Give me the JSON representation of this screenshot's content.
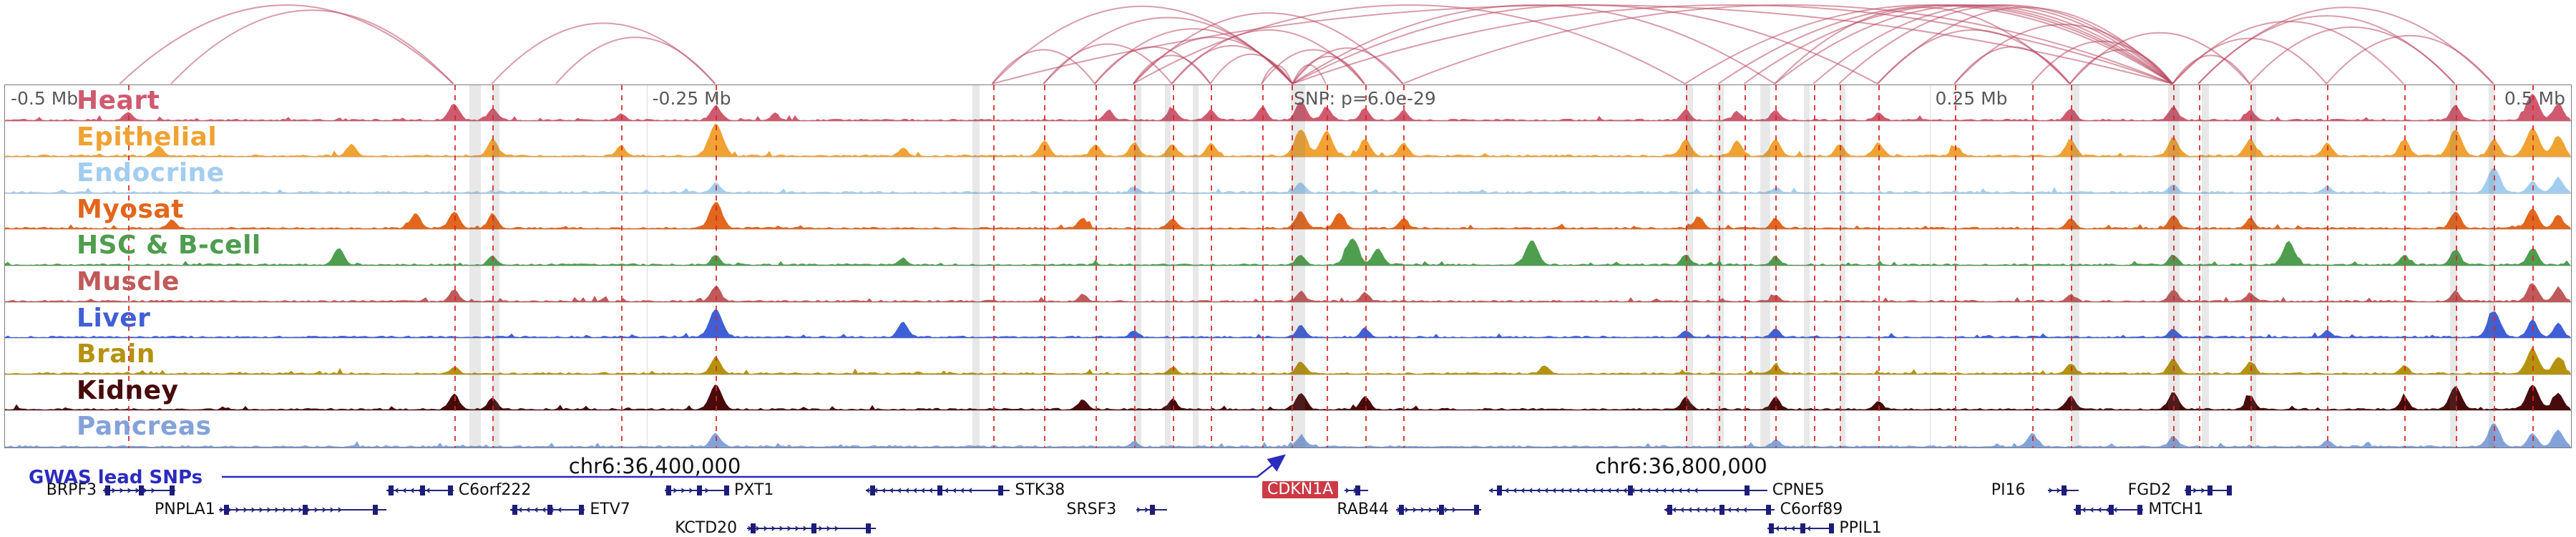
{
  "chart_data": {
    "type": "genome-tracks",
    "title": "",
    "axis": {
      "tick_labels": [
        {
          "text": "-0.5 Mb",
          "x_pct": 0.0,
          "align": "left"
        },
        {
          "text": "-0.25 Mb",
          "x_pct": 0.25,
          "align": "left"
        },
        {
          "text": "SNP: p=6.0e-29",
          "x_pct": 0.5,
          "align": "left"
        },
        {
          "text": "0.25 Mb",
          "x_pct": 0.75,
          "align": "left"
        },
        {
          "text": "0.5 Mb",
          "x_pct": 1.0,
          "align": "right"
        }
      ],
      "coordinate_labels": [
        {
          "text": "chr6:36,400,000",
          "x_pct": 0.2535
        },
        {
          "text": "chr6:36,800,000",
          "x_pct": 0.6535
        }
      ]
    },
    "gwas": {
      "label": "GWAS lead SNPs",
      "color": "#2b2bbf"
    },
    "arc_color": "#b94a62",
    "tracks": [
      {
        "name": "Heart",
        "color": "#cf5a70",
        "peaks": [
          [
            0.048,
            0.25
          ],
          [
            0.175,
            0.5
          ],
          [
            0.19,
            0.35
          ],
          [
            0.24,
            0.2
          ],
          [
            0.277,
            0.45
          ],
          [
            0.3,
            0.2
          ],
          [
            0.43,
            0.3
          ],
          [
            0.455,
            0.35
          ],
          [
            0.47,
            0.3
          ],
          [
            0.49,
            0.4
          ],
          [
            0.505,
            0.55
          ],
          [
            0.515,
            0.4
          ],
          [
            0.53,
            0.35
          ],
          [
            0.545,
            0.3
          ],
          [
            0.655,
            0.3
          ],
          [
            0.675,
            0.25
          ],
          [
            0.69,
            0.3
          ],
          [
            0.73,
            0.2
          ],
          [
            0.805,
            0.35
          ],
          [
            0.845,
            0.4
          ],
          [
            0.875,
            0.3
          ],
          [
            0.955,
            0.45
          ],
          [
            0.985,
            0.8
          ],
          [
            0.995,
            0.5
          ]
        ]
      },
      {
        "name": "Epithelial",
        "color": "#f0a232",
        "peaks": [
          [
            0.06,
            0.3
          ],
          [
            0.135,
            0.35
          ],
          [
            0.19,
            0.5
          ],
          [
            0.24,
            0.3
          ],
          [
            0.277,
            0.97
          ],
          [
            0.35,
            0.25
          ],
          [
            0.405,
            0.45
          ],
          [
            0.425,
            0.35
          ],
          [
            0.44,
            0.4
          ],
          [
            0.455,
            0.35
          ],
          [
            0.47,
            0.4
          ],
          [
            0.505,
            0.8
          ],
          [
            0.515,
            0.75
          ],
          [
            0.53,
            0.5
          ],
          [
            0.545,
            0.4
          ],
          [
            0.655,
            0.5
          ],
          [
            0.675,
            0.45
          ],
          [
            0.69,
            0.5
          ],
          [
            0.715,
            0.35
          ],
          [
            0.73,
            0.4
          ],
          [
            0.76,
            0.3
          ],
          [
            0.805,
            0.5
          ],
          [
            0.845,
            0.55
          ],
          [
            0.875,
            0.5
          ],
          [
            0.905,
            0.4
          ],
          [
            0.935,
            0.5
          ],
          [
            0.955,
            0.8
          ],
          [
            0.97,
            0.5
          ],
          [
            0.985,
            0.85
          ],
          [
            0.995,
            0.6
          ]
        ]
      },
      {
        "name": "Endocrine",
        "color": "#a3cdf0",
        "peaks": [
          [
            0.277,
            0.3
          ],
          [
            0.44,
            0.15
          ],
          [
            0.505,
            0.3
          ],
          [
            0.69,
            0.15
          ],
          [
            0.845,
            0.25
          ],
          [
            0.905,
            0.2
          ],
          [
            0.97,
            0.75
          ],
          [
            0.985,
            0.35
          ],
          [
            0.995,
            0.45
          ]
        ]
      },
      {
        "name": "Myosat",
        "color": "#e2661c",
        "peaks": [
          [
            0.065,
            0.25
          ],
          [
            0.16,
            0.45
          ],
          [
            0.175,
            0.5
          ],
          [
            0.19,
            0.4
          ],
          [
            0.277,
            0.8
          ],
          [
            0.42,
            0.3
          ],
          [
            0.455,
            0.3
          ],
          [
            0.505,
            0.5
          ],
          [
            0.52,
            0.45
          ],
          [
            0.545,
            0.3
          ],
          [
            0.66,
            0.35
          ],
          [
            0.69,
            0.3
          ],
          [
            0.805,
            0.3
          ],
          [
            0.845,
            0.4
          ],
          [
            0.875,
            0.3
          ],
          [
            0.955,
            0.5
          ],
          [
            0.985,
            0.6
          ],
          [
            0.995,
            0.4
          ]
        ]
      },
      {
        "name": "HSC & B-cell",
        "color": "#4f9d4f",
        "peaks": [
          [
            0.13,
            0.5
          ],
          [
            0.19,
            0.25
          ],
          [
            0.277,
            0.3
          ],
          [
            0.35,
            0.2
          ],
          [
            0.505,
            0.3
          ],
          [
            0.525,
            0.8
          ],
          [
            0.535,
            0.5
          ],
          [
            0.595,
            0.75
          ],
          [
            0.655,
            0.3
          ],
          [
            0.69,
            0.25
          ],
          [
            0.845,
            0.3
          ],
          [
            0.89,
            0.7
          ],
          [
            0.935,
            0.3
          ],
          [
            0.955,
            0.45
          ],
          [
            0.985,
            0.5
          ]
        ]
      },
      {
        "name": "Muscle",
        "color": "#c05a5a",
        "peaks": [
          [
            0.175,
            0.35
          ],
          [
            0.277,
            0.45
          ],
          [
            0.42,
            0.2
          ],
          [
            0.505,
            0.3
          ],
          [
            0.53,
            0.25
          ],
          [
            0.69,
            0.2
          ],
          [
            0.805,
            0.2
          ],
          [
            0.845,
            0.35
          ],
          [
            0.875,
            0.25
          ],
          [
            0.955,
            0.3
          ],
          [
            0.985,
            0.55
          ],
          [
            0.995,
            0.4
          ]
        ]
      },
      {
        "name": "Liver",
        "color": "#3f5fd6",
        "peaks": [
          [
            0.277,
            0.85
          ],
          [
            0.35,
            0.45
          ],
          [
            0.44,
            0.2
          ],
          [
            0.505,
            0.35
          ],
          [
            0.53,
            0.25
          ],
          [
            0.655,
            0.2
          ],
          [
            0.69,
            0.25
          ],
          [
            0.845,
            0.25
          ],
          [
            0.905,
            0.2
          ],
          [
            0.97,
            0.8
          ],
          [
            0.985,
            0.5
          ],
          [
            0.995,
            0.4
          ]
        ]
      },
      {
        "name": "Brain",
        "color": "#b5920e",
        "peaks": [
          [
            0.175,
            0.2
          ],
          [
            0.277,
            0.5
          ],
          [
            0.455,
            0.2
          ],
          [
            0.505,
            0.35
          ],
          [
            0.6,
            0.25
          ],
          [
            0.69,
            0.25
          ],
          [
            0.805,
            0.3
          ],
          [
            0.845,
            0.45
          ],
          [
            0.875,
            0.35
          ],
          [
            0.935,
            0.25
          ],
          [
            0.985,
            0.75
          ],
          [
            0.995,
            0.5
          ]
        ]
      },
      {
        "name": "Kidney",
        "color": "#470b0b",
        "peaks": [
          [
            0.175,
            0.45
          ],
          [
            0.19,
            0.35
          ],
          [
            0.277,
            0.75
          ],
          [
            0.42,
            0.3
          ],
          [
            0.455,
            0.3
          ],
          [
            0.505,
            0.5
          ],
          [
            0.53,
            0.4
          ],
          [
            0.655,
            0.35
          ],
          [
            0.69,
            0.35
          ],
          [
            0.73,
            0.25
          ],
          [
            0.805,
            0.4
          ],
          [
            0.845,
            0.5
          ],
          [
            0.875,
            0.4
          ],
          [
            0.935,
            0.35
          ],
          [
            0.955,
            0.7
          ],
          [
            0.985,
            0.75
          ],
          [
            0.995,
            0.5
          ]
        ]
      },
      {
        "name": "Pancreas",
        "color": "#84a2da",
        "peaks": [
          [
            0.277,
            0.4
          ],
          [
            0.44,
            0.15
          ],
          [
            0.505,
            0.3
          ],
          [
            0.69,
            0.2
          ],
          [
            0.79,
            0.4
          ],
          [
            0.845,
            0.3
          ],
          [
            0.905,
            0.2
          ],
          [
            0.97,
            0.7
          ],
          [
            0.985,
            0.4
          ],
          [
            0.995,
            0.5
          ]
        ]
      }
    ],
    "arcs": [
      [
        0.045,
        0.175
      ],
      [
        0.065,
        0.175
      ],
      [
        0.19,
        0.277
      ],
      [
        0.215,
        0.277
      ],
      [
        0.385,
        0.502
      ],
      [
        0.405,
        0.502
      ],
      [
        0.425,
        0.502
      ],
      [
        0.44,
        0.502
      ],
      [
        0.455,
        0.502
      ],
      [
        0.47,
        0.502
      ],
      [
        0.49,
        0.502
      ],
      [
        0.385,
        0.425
      ],
      [
        0.405,
        0.455
      ],
      [
        0.425,
        0.47
      ],
      [
        0.44,
        0.47
      ],
      [
        0.502,
        0.515
      ],
      [
        0.502,
        0.53
      ],
      [
        0.502,
        0.545
      ],
      [
        0.49,
        0.53
      ],
      [
        0.455,
        0.53
      ],
      [
        0.44,
        0.545
      ],
      [
        0.502,
        0.69
      ],
      [
        0.502,
        0.73
      ],
      [
        0.44,
        0.655
      ],
      [
        0.385,
        0.845
      ],
      [
        0.502,
        0.845
      ],
      [
        0.545,
        0.845
      ],
      [
        0.655,
        0.845
      ],
      [
        0.668,
        0.845
      ],
      [
        0.678,
        0.845
      ],
      [
        0.69,
        0.845
      ],
      [
        0.705,
        0.845
      ],
      [
        0.715,
        0.845
      ],
      [
        0.73,
        0.845
      ],
      [
        0.76,
        0.845
      ],
      [
        0.79,
        0.845
      ],
      [
        0.805,
        0.845
      ],
      [
        0.69,
        0.805
      ],
      [
        0.73,
        0.805
      ],
      [
        0.76,
        0.805
      ],
      [
        0.845,
        0.875
      ],
      [
        0.845,
        0.905
      ],
      [
        0.845,
        0.935
      ],
      [
        0.855,
        0.955
      ],
      [
        0.855,
        0.97
      ],
      [
        0.805,
        0.875
      ],
      [
        0.875,
        0.955
      ],
      [
        0.905,
        0.97
      ]
    ],
    "snp_lines": [
      0.048,
      0.175,
      0.19,
      0.24,
      0.277,
      0.385,
      0.405,
      0.425,
      0.44,
      0.455,
      0.47,
      0.49,
      0.5015,
      0.515,
      0.53,
      0.545,
      0.655,
      0.668,
      0.678,
      0.69,
      0.705,
      0.715,
      0.73,
      0.76,
      0.79,
      0.805,
      0.845,
      0.855,
      0.875,
      0.905,
      0.935,
      0.955,
      0.97,
      0.985
    ],
    "highlight_bands": [
      [
        0.181,
        16
      ],
      [
        0.19,
        10
      ],
      [
        0.377,
        10
      ],
      [
        0.44,
        10
      ],
      [
        0.452,
        8
      ],
      [
        0.463,
        8
      ],
      [
        0.501,
        20
      ],
      [
        0.655,
        10
      ],
      [
        0.667,
        10
      ],
      [
        0.684,
        14
      ],
      [
        0.701,
        8
      ],
      [
        0.715,
        8
      ],
      [
        0.805,
        12
      ],
      [
        0.843,
        16
      ],
      [
        0.856,
        10
      ],
      [
        0.875,
        8
      ],
      [
        0.953,
        10
      ],
      [
        0.968,
        8
      ]
    ],
    "genes": [
      {
        "name": "BRPF3",
        "row": 1,
        "strand": "+",
        "label_x": 0.018,
        "body": [
          0.04,
          0.068
        ]
      },
      {
        "name": "PNPLA1",
        "row": 2,
        "strand": "+",
        "label_x": 0.06,
        "body": [
          0.085,
          0.15
        ]
      },
      {
        "name": "C6orf222",
        "row": 1,
        "strand": "-",
        "label_x": 0.178,
        "body": [
          0.15,
          0.176
        ]
      },
      {
        "name": "ETV7",
        "row": 2,
        "strand": "-",
        "label_x": 0.229,
        "body": [
          0.198,
          0.227
        ]
      },
      {
        "name": "PXT1",
        "row": 1,
        "strand": "+",
        "label_x": 0.285,
        "body": [
          0.258,
          0.283
        ]
      },
      {
        "name": "KCTD20",
        "row": 3,
        "strand": "+",
        "label_x": 0.262,
        "body": [
          0.29,
          0.34
        ]
      },
      {
        "name": "STK38",
        "row": 1,
        "strand": "-",
        "label_x": 0.394,
        "body": [
          0.336,
          0.392
        ]
      },
      {
        "name": "SRSF3",
        "row": 2,
        "strand": "+",
        "label_x": 0.414,
        "body": [
          0.441,
          0.453
        ]
      },
      {
        "name": "CDKN1A",
        "row": 1,
        "strand": "+",
        "label_x": 0.49,
        "body": [
          0.522,
          0.531
        ],
        "highlight": true
      },
      {
        "name": "RAB44",
        "row": 2,
        "strand": "+",
        "label_x": 0.519,
        "body": [
          0.542,
          0.575
        ]
      },
      {
        "name": "CPNE5",
        "row": 1,
        "strand": "-",
        "label_x": 0.688,
        "body": [
          0.578,
          0.686
        ]
      },
      {
        "name": "C6orf89",
        "row": 2,
        "strand": "-",
        "label_x": 0.691,
        "body": [
          0.646,
          0.689
        ]
      },
      {
        "name": "PPIL1",
        "row": 3,
        "strand": "-",
        "label_x": 0.714,
        "body": [
          0.686,
          0.712
        ]
      },
      {
        "name": "PI16",
        "row": 1,
        "strand": "+",
        "label_x": 0.773,
        "body": [
          0.795,
          0.807
        ]
      },
      {
        "name": "FGD2",
        "row": 1,
        "strand": "+",
        "label_x": 0.826,
        "body": [
          0.848,
          0.866
        ]
      },
      {
        "name": "MTCH1",
        "row": 2,
        "strand": "-",
        "label_x": 0.834,
        "body": [
          0.805,
          0.832
        ]
      }
    ]
  }
}
